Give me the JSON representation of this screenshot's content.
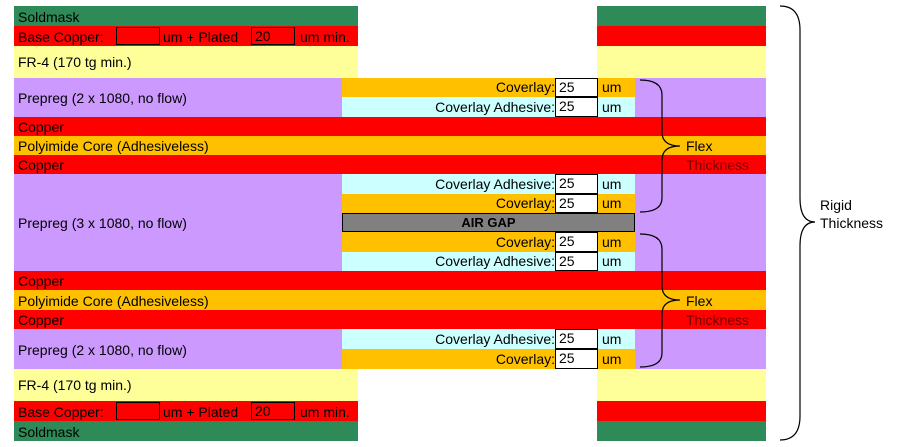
{
  "colors": {
    "soldmask": "#2e8b57",
    "copper": "#ff0000",
    "fr4": "#ffff99",
    "prepreg": "#cc99ff",
    "polyimide": "#ffc000",
    "coverlay": "#ffc000",
    "coverlay_adhesive": "#ccffff",
    "air_gap": "#808080"
  },
  "layers": {
    "soldmask": "Soldmask",
    "base_copper": "Base Copper:",
    "um_plated": "um + Plated",
    "um_min": "um min.",
    "fr4": "FR-4 (170 tg min.)",
    "prepreg_top": "Prepreg (2 x 1080, no flow)",
    "copper": "Copper",
    "polyimide": "Polyimide Core (Adhesiveless)",
    "prepreg_mid": "Prepreg (3 x 1080, no flow)",
    "prepreg_bottom": "Prepreg (2 x 1080, no flow)"
  },
  "base_copper_top": {
    "value": "",
    "plated": "20"
  },
  "base_copper_bottom": {
    "value": "",
    "plated": "20"
  },
  "coverlay": {
    "coverlay_label": "Coverlay:",
    "adhesive_label": "Coverlay Adhesive:",
    "unit": "um",
    "values": [
      "25",
      "25",
      "25",
      "25",
      "25",
      "25",
      "25",
      "25"
    ]
  },
  "air_gap": "AIR GAP",
  "flex_thickness": {
    "line1": "Flex",
    "line2": "Thickness"
  },
  "rigid_thickness": {
    "line1": "Rigid",
    "line2": "Thickness"
  }
}
